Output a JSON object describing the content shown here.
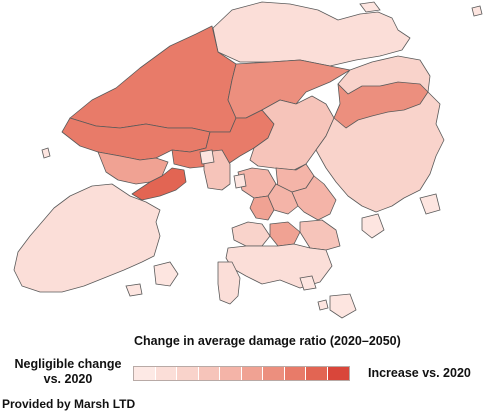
{
  "legend": {
    "title": "Change in average damage ratio (2020–2050)",
    "low_label_line1": "Negligible change",
    "low_label_line2": "vs. 2020",
    "high_label": "Increase vs. 2020",
    "ramp_colors": [
      "#fde9e5",
      "#fbded8",
      "#f9d3cb",
      "#f6c4ba",
      "#f4b4a8",
      "#f0a293",
      "#ec8f7e",
      "#e87b69",
      "#e26553",
      "#d9463a"
    ]
  },
  "credit": "Provided by Marsh LTD",
  "districts": [
    {
      "id": "north",
      "level": 7
    },
    {
      "id": "tai-po",
      "level": 6
    },
    {
      "id": "tuen-mun",
      "level": 5
    },
    {
      "id": "yuen-long",
      "level": 7
    },
    {
      "id": "tsuen-wan",
      "level": 7
    },
    {
      "id": "tsuen-wan-south",
      "level": 8
    },
    {
      "id": "sha-tin",
      "level": 3
    },
    {
      "id": "sai-kung",
      "level": 2
    },
    {
      "id": "kwai-tsing",
      "level": 3
    },
    {
      "id": "sham-shui-po",
      "level": 4
    },
    {
      "id": "wong-tai-sin",
      "level": 4
    },
    {
      "id": "kwun-tong",
      "level": 4
    },
    {
      "id": "yau-tsim-mong",
      "level": 5
    },
    {
      "id": "kowloon-city",
      "level": 4
    },
    {
      "id": "shap-sz-heung",
      "level": 6
    },
    {
      "id": "lantau",
      "level": 1
    },
    {
      "id": "central-western",
      "level": 2
    },
    {
      "id": "wan-chai",
      "level": 5
    },
    {
      "id": "eastern",
      "level": 3
    },
    {
      "id": "southern",
      "level": 1
    },
    {
      "id": "lamma",
      "level": 1
    },
    {
      "id": "north-east-new-territories",
      "level": 1
    }
  ]
}
